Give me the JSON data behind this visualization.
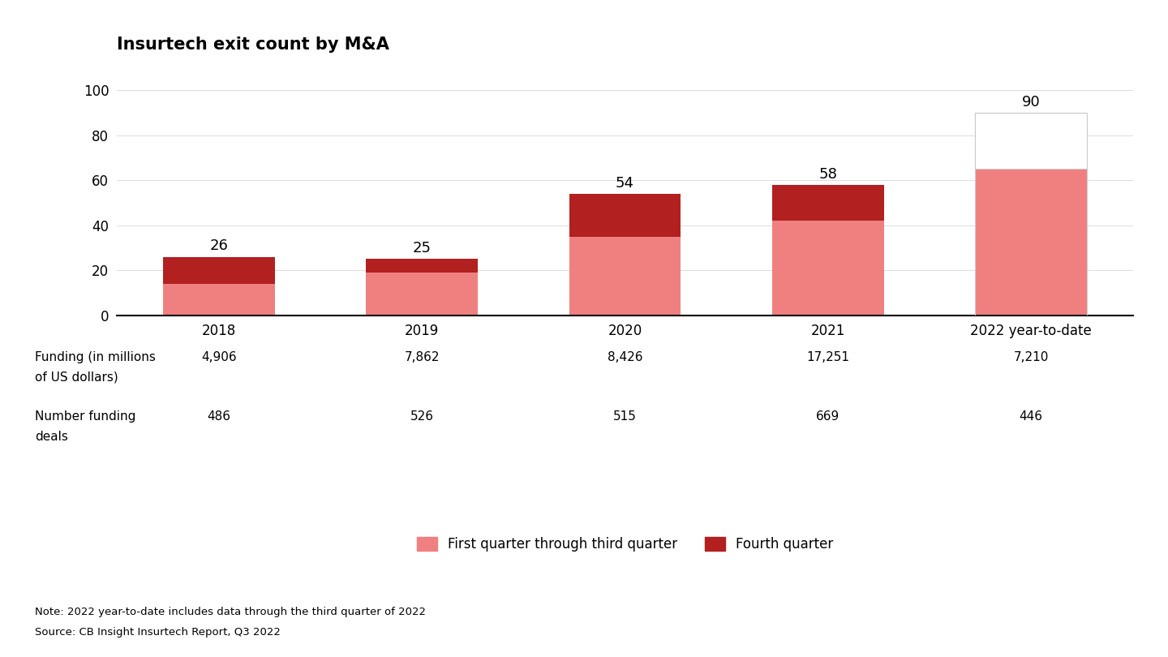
{
  "title": "Insurtech exit count by M&A",
  "categories": [
    "2018",
    "2019",
    "2020",
    "2021",
    "2022 year-to-date"
  ],
  "q1_q3": [
    14,
    19,
    35,
    42,
    65
  ],
  "q4": [
    12,
    6,
    19,
    16,
    0
  ],
  "totals": [
    26,
    25,
    54,
    58,
    90
  ],
  "color_q1_q3": "#F08080",
  "color_q4": "#B22020",
  "color_projected": "#FFFFFF",
  "color_projected_border": "#CCCCCC",
  "ylim": [
    0,
    105
  ],
  "yticks": [
    0,
    20,
    40,
    60,
    80,
    100
  ],
  "funding_label_line1": "Funding (in millions",
  "funding_label_line2": "of US dollars)",
  "funding_values": [
    "4,906",
    "7,862",
    "8,426",
    "17,251",
    "7,210"
  ],
  "deals_label_line1": "Number funding",
  "deals_label_line2": "deals",
  "deals_values": [
    "486",
    "526",
    "515",
    "669",
    "446"
  ],
  "legend_q1q3": "First quarter through third quarter",
  "legend_q4": "Fourth quarter",
  "note": "Note: 2022 year-to-date includes data through the third quarter of 2022",
  "source": "Source: CB Insight Insurtech Report, Q3 2022",
  "background_color": "#FFFFFF",
  "title_fontsize": 15,
  "label_fontsize": 12,
  "tick_fontsize": 12,
  "bar_width": 0.55,
  "total_label_fontsize": 13
}
